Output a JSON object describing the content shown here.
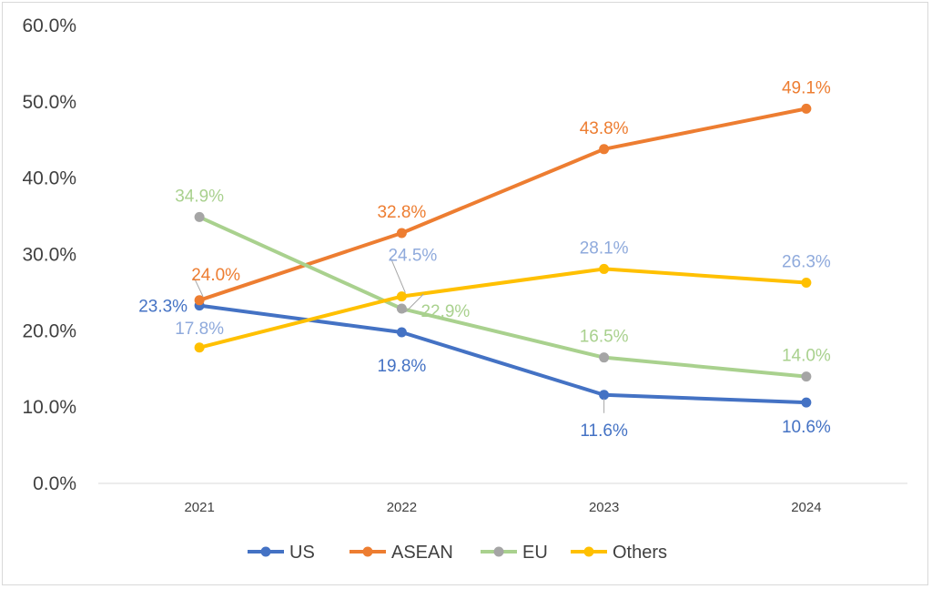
{
  "chart_data": {
    "type": "line",
    "title": "",
    "xlabel": "",
    "ylabel": "",
    "categories": [
      "2021",
      "2022",
      "2023",
      "2024"
    ],
    "ylim": [
      0,
      60
    ],
    "yticks": [
      "0.0%",
      "10.0%",
      "20.0%",
      "30.0%",
      "40.0%",
      "50.0%",
      "60.0%"
    ],
    "grid": false,
    "legend_position": "bottom",
    "series": [
      {
        "name": "US",
        "values": [
          23.3,
          19.8,
          11.6,
          10.6
        ],
        "labels": [
          "23.3%",
          "19.8%",
          "11.6%",
          "10.6%"
        ],
        "color": "#4472C4",
        "marker_color": "#4472C4",
        "label_color": "#4472C4"
      },
      {
        "name": "ASEAN",
        "values": [
          24.0,
          32.8,
          43.8,
          49.1
        ],
        "labels": [
          "24.0%",
          "32.8%",
          "43.8%",
          "49.1%"
        ],
        "color": "#ED7D31",
        "marker_color": "#ED7D31",
        "label_color": "#ED7D31"
      },
      {
        "name": "EU",
        "values": [
          34.9,
          22.9,
          16.5,
          14.0
        ],
        "labels": [
          "34.9%",
          "22.9%",
          "16.5%",
          "14.0%"
        ],
        "color": "#A9D18E",
        "marker_color": "#A5A5A5",
        "label_color": "#A9D18E"
      },
      {
        "name": "Others",
        "values": [
          17.8,
          24.5,
          28.1,
          26.3
        ],
        "labels": [
          "17.8%",
          "24.5%",
          "28.1%",
          "26.3%"
        ],
        "color": "#FFC000",
        "marker_color": "#FFC000",
        "label_color": "#8FAADC"
      }
    ]
  }
}
